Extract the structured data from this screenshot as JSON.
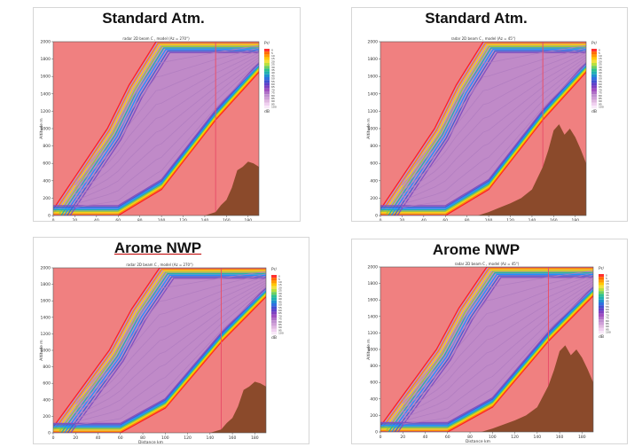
{
  "chart_data": [
    {
      "type": "heatmap",
      "heading": "Standard Atm.",
      "title": "radar 2D beam C , model (Az = 270°)",
      "xlabel": "Distance km",
      "ylabel": "Altitude m",
      "xlim": [
        0,
        190
      ],
      "ylim": [
        0,
        2000
      ],
      "x_ticks": [
        "0",
        "20",
        "40",
        "60",
        "80",
        "100",
        "120",
        "140",
        "160",
        "180"
      ],
      "y_ticks": [
        "0",
        "200",
        "400",
        "600",
        "800",
        "1000",
        "1200",
        "1400",
        "1600",
        "1800",
        "2000"
      ],
      "colorbar_title": "Pr/",
      "colorbar_labels": [
        "0",
        "5",
        "10",
        "15",
        "20",
        "25",
        "30",
        "35",
        "40",
        "45",
        "50",
        "55",
        "60",
        "65",
        "70",
        "75",
        "80",
        "85",
        "90",
        "95",
        "100"
      ],
      "colorbar_unit": "dB",
      "radial_line_km": 150,
      "beam_top_at_x_km": [
        [
          0,
          70
        ],
        [
          50,
          1000
        ],
        [
          70,
          1500
        ],
        [
          95,
          2000
        ]
      ],
      "beam_bottom_at_x_km": [
        [
          0,
          0
        ],
        [
          60,
          0
        ],
        [
          100,
          300
        ],
        [
          150,
          1100
        ],
        [
          190,
          1650
        ]
      ],
      "terrain": [
        [
          140,
          0
        ],
        [
          150,
          40
        ],
        [
          155,
          120
        ],
        [
          160,
          180
        ],
        [
          165,
          320
        ],
        [
          170,
          520
        ],
        [
          175,
          560
        ],
        [
          180,
          620
        ],
        [
          185,
          600
        ],
        [
          190,
          560
        ]
      ]
    },
    {
      "type": "heatmap",
      "heading": "Standard Atm.",
      "title": "radar 2D beam C , model (Az = 45°)",
      "xlabel": "Distance km",
      "ylabel": "Altitude m",
      "xlim": [
        0,
        190
      ],
      "ylim": [
        0,
        2000
      ],
      "x_ticks": [
        "0",
        "20",
        "40",
        "60",
        "80",
        "100",
        "120",
        "140",
        "160",
        "180"
      ],
      "y_ticks": [
        "0",
        "200",
        "400",
        "600",
        "800",
        "1000",
        "1200",
        "1400",
        "1600",
        "1800",
        "2000"
      ],
      "colorbar_title": "Pr/",
      "colorbar_labels": [
        "0",
        "5",
        "10",
        "15",
        "20",
        "25",
        "30",
        "35",
        "40",
        "45",
        "50",
        "55",
        "60",
        "65",
        "70",
        "75",
        "80",
        "85",
        "90",
        "95",
        "100"
      ],
      "colorbar_unit": "dB",
      "radial_line_km": 150,
      "beam_top_at_x_km": [
        [
          0,
          70
        ],
        [
          50,
          1000
        ],
        [
          70,
          1500
        ],
        [
          95,
          2000
        ]
      ],
      "beam_bottom_at_x_km": [
        [
          0,
          0
        ],
        [
          60,
          0
        ],
        [
          100,
          300
        ],
        [
          150,
          1100
        ],
        [
          190,
          1650
        ]
      ],
      "terrain": [
        [
          90,
          0
        ],
        [
          100,
          40
        ],
        [
          110,
          90
        ],
        [
          120,
          140
        ],
        [
          130,
          200
        ],
        [
          140,
          300
        ],
        [
          150,
          560
        ],
        [
          155,
          750
        ],
        [
          160,
          980
        ],
        [
          165,
          1050
        ],
        [
          170,
          930
        ],
        [
          175,
          1000
        ],
        [
          180,
          900
        ],
        [
          185,
          760
        ],
        [
          190,
          600
        ]
      ]
    },
    {
      "type": "heatmap",
      "heading": "Arome NWP",
      "title": "radar 2D beam C , model (Az = 270°)",
      "xlabel": "Distance km",
      "ylabel": "Altitude m",
      "xlim": [
        0,
        190
      ],
      "ylim": [
        0,
        2000
      ],
      "x_ticks": [
        "0",
        "20",
        "40",
        "60",
        "80",
        "100",
        "120",
        "140",
        "160",
        "180"
      ],
      "y_ticks": [
        "0",
        "200",
        "400",
        "600",
        "800",
        "1000",
        "1200",
        "1400",
        "1600",
        "1800",
        "2000"
      ],
      "colorbar_title": "Pr/",
      "colorbar_labels": [
        "0",
        "5",
        "10",
        "15",
        "20",
        "25",
        "30",
        "35",
        "40",
        "45",
        "50",
        "55",
        "60",
        "65",
        "70",
        "75",
        "80",
        "85",
        "90",
        "95",
        "100"
      ],
      "colorbar_unit": "dB",
      "radial_line_km": 150,
      "beam_top_at_x_km": [
        [
          0,
          70
        ],
        [
          50,
          1000
        ],
        [
          70,
          1500
        ],
        [
          95,
          2000
        ]
      ],
      "beam_bottom_at_x_km": [
        [
          0,
          0
        ],
        [
          60,
          0
        ],
        [
          100,
          300
        ],
        [
          150,
          1100
        ],
        [
          190,
          1650
        ]
      ],
      "terrain": [
        [
          140,
          0
        ],
        [
          150,
          40
        ],
        [
          155,
          120
        ],
        [
          160,
          180
        ],
        [
          165,
          320
        ],
        [
          170,
          520
        ],
        [
          175,
          560
        ],
        [
          180,
          620
        ],
        [
          185,
          600
        ],
        [
          190,
          560
        ]
      ]
    },
    {
      "type": "heatmap",
      "heading": "Arome NWP",
      "title": "radar 2D beam C , model (Az = 45°)",
      "xlabel": "Distance km",
      "ylabel": "Altitude m",
      "xlim": [
        0,
        190
      ],
      "ylim": [
        0,
        2000
      ],
      "x_ticks": [
        "0",
        "20",
        "40",
        "60",
        "80",
        "100",
        "120",
        "140",
        "160",
        "180"
      ],
      "y_ticks": [
        "0",
        "200",
        "400",
        "600",
        "800",
        "1000",
        "1200",
        "1400",
        "1600",
        "1800",
        "2000"
      ],
      "colorbar_title": "Pr/",
      "colorbar_labels": [
        "0",
        "5",
        "10",
        "15",
        "20",
        "25",
        "30",
        "35",
        "40",
        "45",
        "50",
        "55",
        "60",
        "65",
        "70",
        "75",
        "80",
        "85",
        "90",
        "95",
        "100"
      ],
      "colorbar_unit": "dB",
      "radial_line_km": 150,
      "beam_top_at_x_km": [
        [
          0,
          70
        ],
        [
          50,
          1000
        ],
        [
          70,
          1500
        ],
        [
          95,
          2000
        ]
      ],
      "beam_bottom_at_x_km": [
        [
          0,
          0
        ],
        [
          60,
          0
        ],
        [
          100,
          300
        ],
        [
          150,
          1100
        ],
        [
          190,
          1650
        ]
      ],
      "terrain": [
        [
          90,
          0
        ],
        [
          100,
          40
        ],
        [
          110,
          90
        ],
        [
          120,
          140
        ],
        [
          130,
          200
        ],
        [
          140,
          300
        ],
        [
          150,
          560
        ],
        [
          155,
          750
        ],
        [
          160,
          980
        ],
        [
          165,
          1050
        ],
        [
          170,
          930
        ],
        [
          175,
          1000
        ],
        [
          180,
          900
        ],
        [
          185,
          760
        ],
        [
          190,
          600
        ]
      ]
    }
  ],
  "colors": {
    "background_field": "#f08080",
    "beam": "#c08ac8",
    "terrain": "#8b4a2b",
    "radial_line": "#e8506a",
    "rainbow": [
      "#ff2020",
      "#ff8c00",
      "#ffd700",
      "#9acd32",
      "#20b2aa",
      "#1e90ff",
      "#4060d0",
      "#8050c0"
    ]
  }
}
